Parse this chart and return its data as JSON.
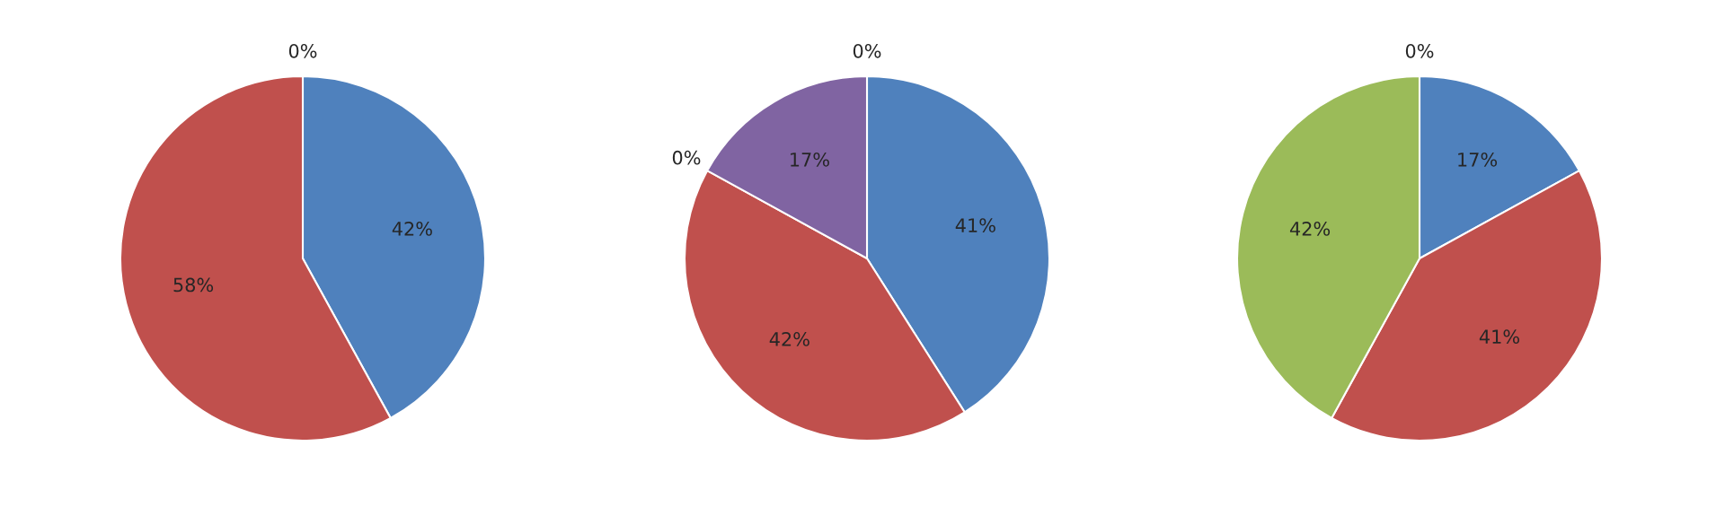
{
  "chart_data": [
    {
      "type": "pie",
      "categories": [
        null,
        null,
        null
      ],
      "values": [
        42,
        58,
        0
      ],
      "colors": [
        "#4f81bd",
        "#c0504d",
        "#9bbb59"
      ],
      "value_labels": [
        "42%",
        "58%",
        "0%"
      ]
    },
    {
      "type": "pie",
      "categories": [
        null,
        null,
        null,
        null,
        null
      ],
      "values": [
        41,
        42,
        0,
        17,
        0
      ],
      "colors": [
        "#4f81bd",
        "#c0504d",
        "#9bbb59",
        "#8064a2",
        "#4bacc6"
      ],
      "value_labels": [
        "41%",
        "42%",
        "0%",
        "17%",
        "0%"
      ]
    },
    {
      "type": "pie",
      "categories": [
        null,
        null,
        null,
        null
      ],
      "values": [
        17,
        41,
        42,
        0
      ],
      "colors": [
        "#4f81bd",
        "#c0504d",
        "#9bbb59",
        "#8064a2"
      ],
      "value_labels": [
        "17%",
        "41%",
        "42%",
        "0%"
      ]
    }
  ]
}
